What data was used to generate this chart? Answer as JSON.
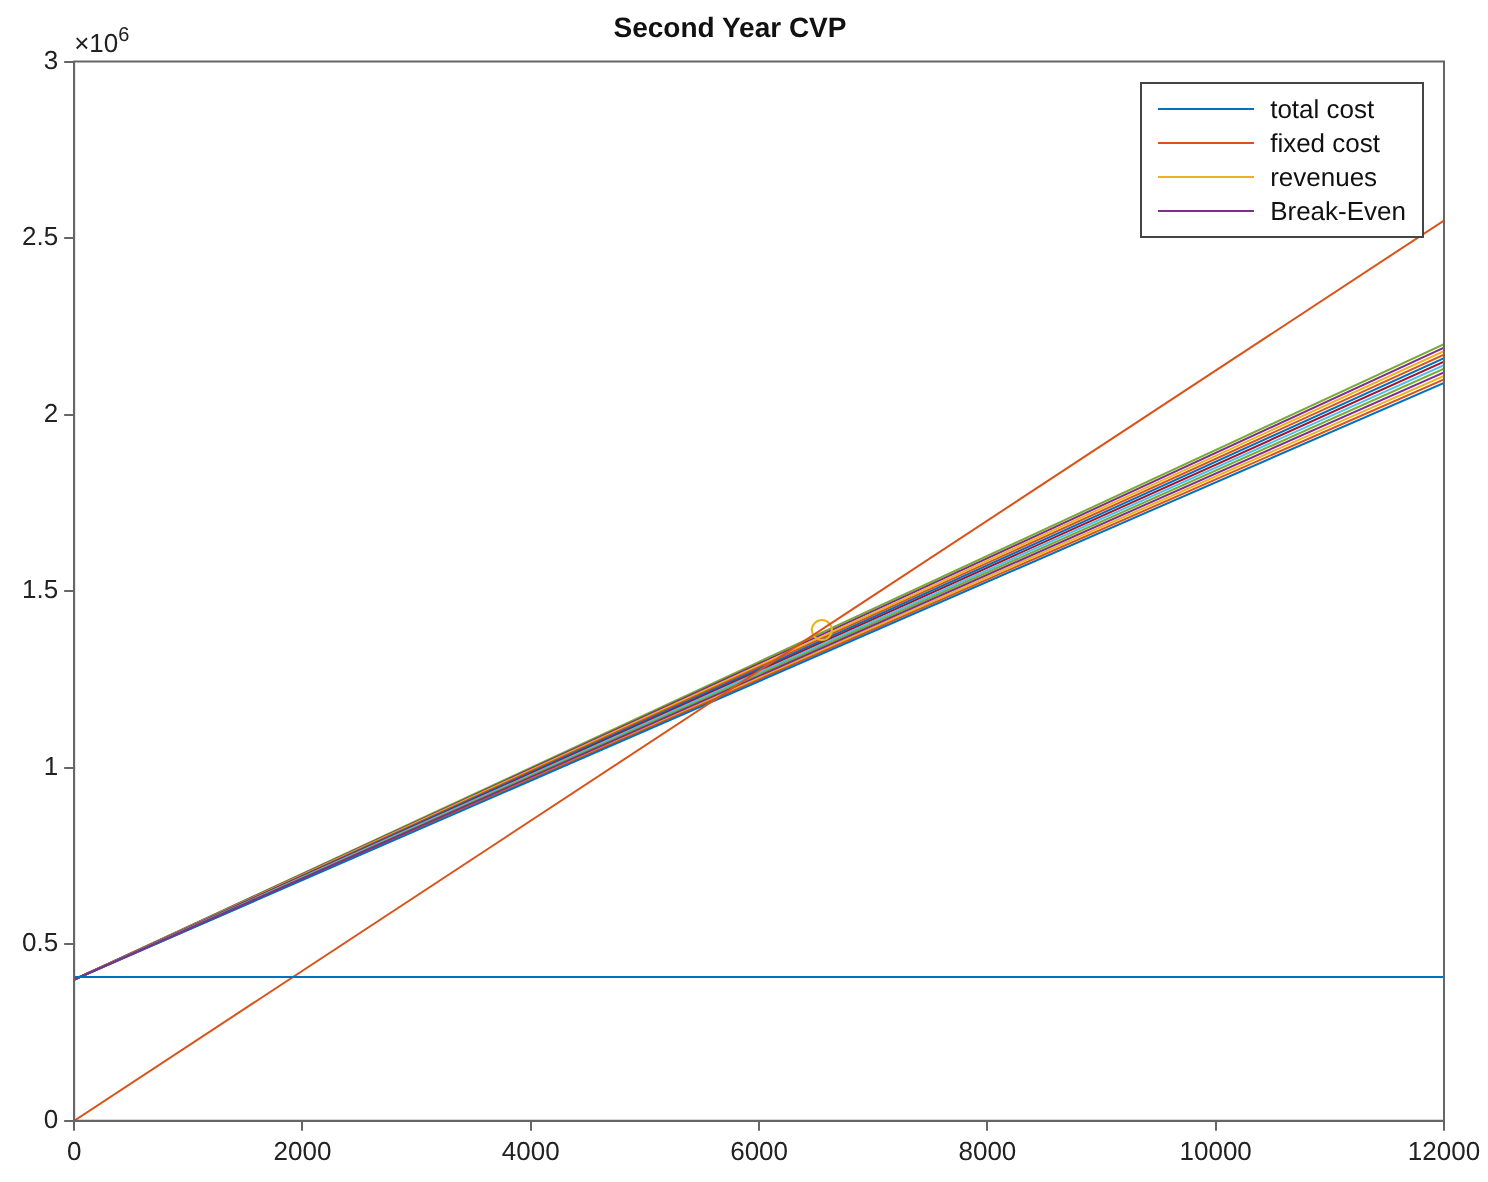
{
  "chart_data": {
    "type": "line",
    "title": "Second Year CVP",
    "annotations": [
      "×10$^{6}$"
    ],
    "xlim": [
      0,
      12000
    ],
    "xticks": [
      0,
      2000,
      4000,
      6000,
      8000,
      10000,
      12000
    ],
    "ylim": [
      0,
      3
    ],
    "yticks": [
      0,
      0.5,
      1,
      1.5,
      2,
      2.5,
      3
    ],
    "grid": false,
    "legend": "top right",
    "marker": "none",
    "line_style": "solid",
    "series": [
      {
        "name": "total cost",
        "color": "#0072bd",
        "x": [
          0,
          12000
        ],
        "values": [
          0.407,
          0.407
        ]
      },
      {
        "name": "fixed cost",
        "color": "#d95319",
        "x": [
          0,
          12000
        ],
        "values": [
          0,
          2.55
        ]
      },
      {
        "name": "revenues",
        "color": "#edb120",
        "type": "scatter",
        "marker": "circle",
        "x": [
          6550
        ],
        "values": [
          1.39
        ]
      },
      {
        "name": "Break-Even",
        "color": "#7e2f8e",
        "x": [
          0,
          12000
        ],
        "values": [
          0.4,
          2.12
        ]
      },
      {
        "color": "#0072bd",
        "x": [
          0,
          12000
        ],
        "values": [
          0.4,
          2.09
        ]
      },
      {
        "color": "#d95319",
        "x": [
          0,
          12000
        ],
        "values": [
          0.4,
          2.1
        ]
      },
      {
        "color": "#edb120",
        "x": [
          0,
          12000
        ],
        "values": [
          0.4,
          2.11
        ]
      },
      {
        "color": "#77ac30",
        "x": [
          0,
          12000
        ],
        "values": [
          0.4,
          2.13
        ]
      },
      {
        "color": "#4dbeee",
        "x": [
          0,
          12000
        ],
        "values": [
          0.4,
          2.14
        ]
      },
      {
        "color": "#a2142f",
        "x": [
          0,
          12000
        ],
        "values": [
          0.4,
          2.15
        ]
      },
      {
        "color": "#0072bd",
        "x": [
          0,
          12000
        ],
        "values": [
          0.4,
          2.16
        ]
      },
      {
        "color": "#d95319",
        "x": [
          0,
          12000
        ],
        "values": [
          0.4,
          2.17
        ]
      },
      {
        "color": "#edb120",
        "x": [
          0,
          12000
        ],
        "values": [
          0.4,
          2.18
        ]
      },
      {
        "color": "#7e2f8e",
        "x": [
          0,
          12000
        ],
        "values": [
          0.4,
          2.19
        ]
      },
      {
        "color": "#77ac30",
        "x": [
          0,
          12000
        ],
        "values": [
          0.4,
          2.2
        ]
      }
    ]
  }
}
